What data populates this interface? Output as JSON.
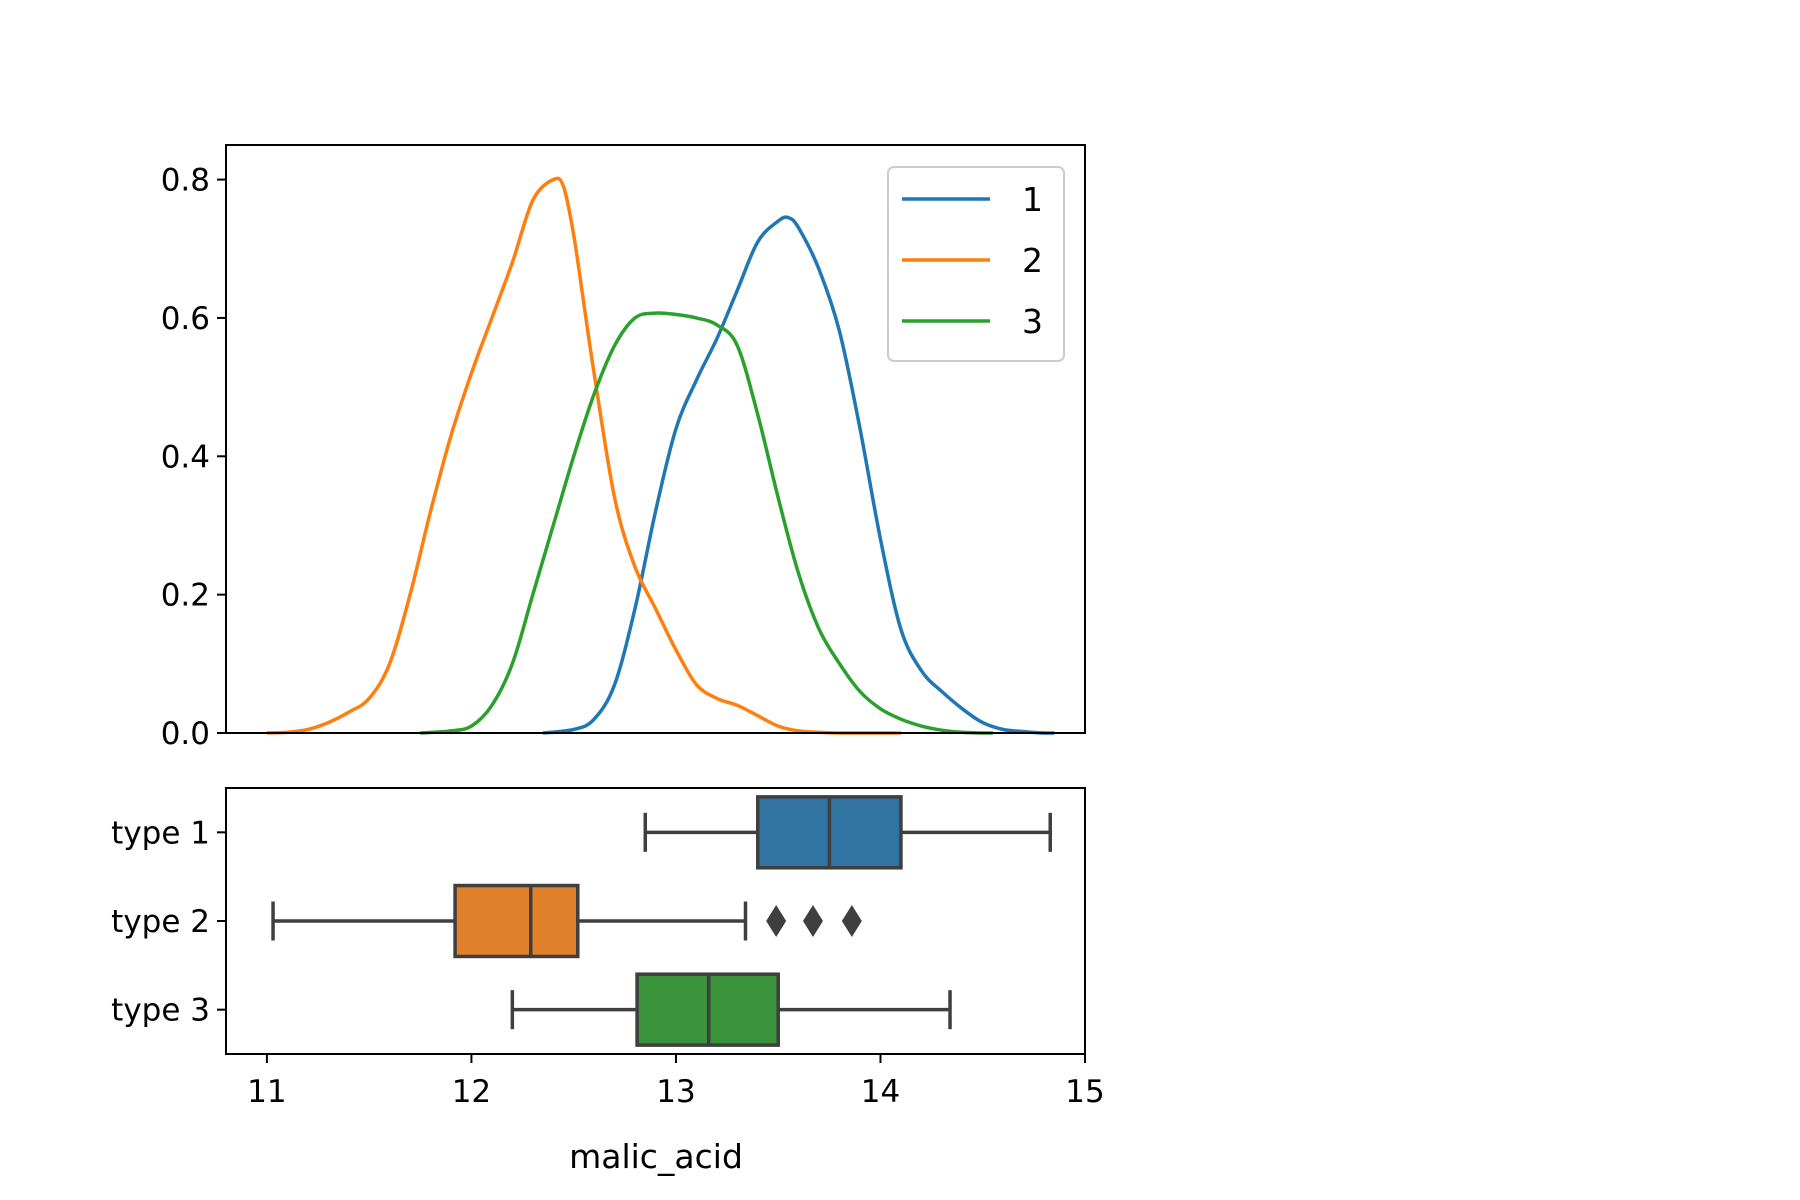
{
  "chart_data": [
    {
      "type": "line",
      "subtype": "kde",
      "title": "",
      "xlabel": "",
      "ylabel": "",
      "xlim": [
        10.8,
        15.0
      ],
      "ylim": [
        0.0,
        0.85
      ],
      "yticks": [
        "0.0",
        "0.2",
        "0.4",
        "0.6",
        "0.8"
      ],
      "x_ticks_shown": false,
      "grid": false,
      "legend": {
        "placement": "top-right",
        "entries": [
          "1",
          "2",
          "3"
        ]
      },
      "series": [
        {
          "name": "1",
          "color": "#1f77b4",
          "x": [
            12.35,
            12.5,
            12.6,
            12.7,
            12.8,
            12.9,
            13.0,
            13.1,
            13.2,
            13.3,
            13.4,
            13.5,
            13.55,
            13.6,
            13.7,
            13.8,
            13.9,
            14.0,
            14.1,
            14.2,
            14.3,
            14.4,
            14.5,
            14.6,
            14.7,
            14.8,
            14.85
          ],
          "y": [
            0.0,
            0.005,
            0.02,
            0.07,
            0.18,
            0.32,
            0.44,
            0.51,
            0.57,
            0.64,
            0.71,
            0.74,
            0.745,
            0.73,
            0.67,
            0.58,
            0.44,
            0.28,
            0.15,
            0.09,
            0.06,
            0.035,
            0.015,
            0.005,
            0.002,
            0.0,
            0.0
          ]
        },
        {
          "name": "2",
          "color": "#ff7f0e",
          "x": [
            11.0,
            11.1,
            11.2,
            11.3,
            11.4,
            11.5,
            11.6,
            11.7,
            11.8,
            11.9,
            12.0,
            12.1,
            12.2,
            12.3,
            12.4,
            12.45,
            12.5,
            12.55,
            12.6,
            12.7,
            12.8,
            12.9,
            13.0,
            13.1,
            13.2,
            13.3,
            13.4,
            13.5,
            13.6,
            13.7,
            13.8,
            13.9,
            14.0,
            14.1
          ],
          "y": [
            0.0,
            0.001,
            0.005,
            0.015,
            0.03,
            0.05,
            0.1,
            0.2,
            0.32,
            0.43,
            0.52,
            0.6,
            0.68,
            0.77,
            0.8,
            0.79,
            0.72,
            0.62,
            0.52,
            0.34,
            0.24,
            0.18,
            0.12,
            0.07,
            0.05,
            0.04,
            0.025,
            0.01,
            0.003,
            0.001,
            0.0,
            0.0,
            0.0,
            0.0
          ]
        },
        {
          "name": "3",
          "color": "#2ca02c",
          "x": [
            11.75,
            11.9,
            12.0,
            12.1,
            12.2,
            12.3,
            12.4,
            12.5,
            12.6,
            12.7,
            12.8,
            12.9,
            13.0,
            13.1,
            13.2,
            13.3,
            13.4,
            13.5,
            13.6,
            13.7,
            13.8,
            13.9,
            14.0,
            14.1,
            14.2,
            14.3,
            14.4,
            14.5,
            14.55
          ],
          "y": [
            0.0,
            0.003,
            0.01,
            0.04,
            0.1,
            0.2,
            0.3,
            0.4,
            0.49,
            0.56,
            0.6,
            0.607,
            0.605,
            0.6,
            0.59,
            0.56,
            0.46,
            0.34,
            0.23,
            0.15,
            0.1,
            0.06,
            0.035,
            0.02,
            0.01,
            0.004,
            0.001,
            0.0,
            0.0
          ]
        }
      ]
    },
    {
      "type": "box",
      "orientation": "horizontal",
      "title": "",
      "xlabel": "malic_acid",
      "ylabel": "",
      "xlim": [
        10.8,
        15.0
      ],
      "xticks": [
        "11",
        "12",
        "13",
        "14",
        "15"
      ],
      "grid": false,
      "categories": [
        "type 1",
        "type 2",
        "type 3"
      ],
      "boxes": [
        {
          "category": "type 1",
          "color": "#3274a1",
          "whisker_low": 12.85,
          "q1": 13.4,
          "median": 13.75,
          "q3": 14.1,
          "whisker_high": 14.83,
          "outliers": []
        },
        {
          "category": "type 2",
          "color": "#e1812c",
          "whisker_low": 11.03,
          "q1": 11.92,
          "median": 12.29,
          "q3": 12.52,
          "whisker_high": 13.34,
          "outliers": [
            13.49,
            13.67,
            13.86
          ]
        },
        {
          "category": "type 3",
          "color": "#3a923a",
          "whisker_low": 12.2,
          "q1": 12.81,
          "median": 13.16,
          "q3": 13.5,
          "whisker_high": 14.34,
          "outliers": []
        }
      ]
    }
  ]
}
